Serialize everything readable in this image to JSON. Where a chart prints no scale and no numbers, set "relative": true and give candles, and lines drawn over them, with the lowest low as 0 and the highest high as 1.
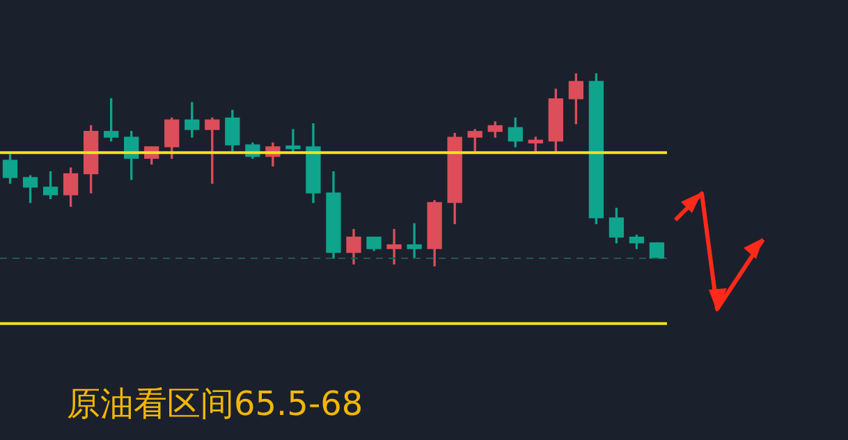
{
  "chart_data": {
    "type": "candlestick",
    "title": "原油看区间65.5-68",
    "relative": true,
    "categories": [
      null,
      null,
      null,
      null,
      null,
      null,
      null,
      null,
      null,
      null,
      null,
      null,
      null,
      null,
      null,
      null,
      null,
      null,
      null,
      null,
      null,
      null,
      null,
      null,
      null,
      null,
      null,
      null,
      null,
      null,
      null,
      null,
      null
    ],
    "ohlc": [
      [
        0.55,
        0.58,
        0.43,
        0.46
      ],
      [
        0.46,
        0.47,
        0.33,
        0.41
      ],
      [
        0.41,
        0.49,
        0.35,
        0.37
      ],
      [
        0.37,
        0.51,
        0.31,
        0.48
      ],
      [
        0.48,
        0.73,
        0.38,
        0.7
      ],
      [
        0.7,
        0.87,
        0.65,
        0.67
      ],
      [
        0.67,
        0.7,
        0.45,
        0.56
      ],
      [
        0.56,
        0.62,
        0.53,
        0.62
      ],
      [
        0.62,
        0.77,
        0.56,
        0.76
      ],
      [
        0.76,
        0.85,
        0.67,
        0.71
      ],
      [
        0.71,
        0.77,
        0.43,
        0.76
      ],
      [
        0.77,
        0.81,
        0.6,
        0.63
      ],
      [
        0.63,
        0.64,
        0.56,
        0.57
      ],
      [
        0.57,
        0.64,
        0.52,
        0.62
      ],
      [
        0.62,
        0.71,
        0.59,
        0.61
      ],
      [
        0.62,
        0.74,
        0.33,
        0.38
      ],
      [
        0.38,
        0.49,
        0.04,
        0.07
      ],
      [
        0.07,
        0.19,
        0.01,
        0.15
      ],
      [
        0.15,
        0.15,
        0.08,
        0.09
      ],
      [
        0.09,
        0.19,
        0.01,
        0.11
      ],
      [
        0.11,
        0.22,
        0.04,
        0.09
      ],
      [
        0.09,
        0.34,
        0,
        0.33
      ],
      [
        0.33,
        0.69,
        0.22,
        0.67
      ],
      [
        0.67,
        0.71,
        0.59,
        0.7
      ],
      [
        0.7,
        0.75,
        0.67,
        0.73
      ],
      [
        0.72,
        0.77,
        0.62,
        0.65
      ],
      [
        0.64,
        0.67,
        0.59,
        0.65
      ],
      [
        0.65,
        0.92,
        0.59,
        0.87
      ],
      [
        0.87,
        1.0,
        0.74,
        0.96
      ],
      [
        0.96,
        1.0,
        0.22,
        0.25
      ],
      [
        0.25,
        0.3,
        0.12,
        0.15
      ],
      [
        0.15,
        0.16,
        0.09,
        0.12
      ],
      [
        0.12,
        0.12,
        0.04,
        0.04
      ]
    ],
    "colors": [
      "#0ea58c",
      "#0ea58c",
      "#0ea58c",
      "#dc4e5a",
      "#dc4e5a",
      "#0ea58c",
      "#0ea58c",
      "#dc4e5a",
      "#dc4e5a",
      "#0ea58c",
      "#dc4e5a",
      "#0ea58c",
      "#0ea58c",
      "#dc4e5a",
      "#0ea58c",
      "#0ea58c",
      "#0ea58c",
      "#dc4e5a",
      "#0ea58c",
      "#dc4e5a",
      "#0ea58c",
      "#dc4e5a",
      "#dc4e5a",
      "#dc4e5a",
      "#dc4e5a",
      "#0ea58c",
      "#dc4e5a",
      "#dc4e5a",
      "#dc4e5a",
      "#0ea58c",
      "#0ea58c",
      "#0ea58c",
      "#0ea58c"
    ],
    "ref_lines": [
      {
        "axis": "y",
        "value": 0.59,
        "color": "#f2e21a",
        "line_style": "solid"
      },
      {
        "axis": "y",
        "value": -0.3,
        "color": "#f2e21a",
        "line_style": "solid"
      },
      {
        "axis": "y",
        "value": 0.04,
        "color": "#1f5a55",
        "line_style": "dashed"
      }
    ],
    "legend": false
  }
}
